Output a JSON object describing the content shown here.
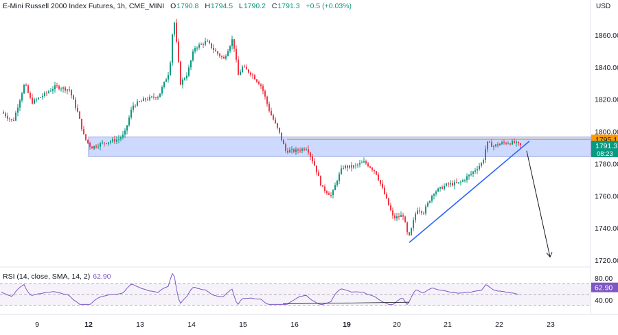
{
  "header": {
    "symbol": "E-Mini Russell 2000 Index Futures, 1h, CME_MINI",
    "open_label": "O",
    "open": "1790.8",
    "high_label": "H",
    "high": "1794.5",
    "low_label": "L",
    "low": "1790.2",
    "close_label": "C",
    "close": "1791.3",
    "change": "+0.5 (+0.03%)"
  },
  "currency": "USD",
  "price_axis": {
    "ticks": [
      "1860.00",
      "1840.00",
      "1820.00",
      "1800.00",
      "1780.00",
      "1760.00",
      "1740.00",
      "1720.00"
    ],
    "resistance_label": "1795.1",
    "last_price_label": "1791.3",
    "countdown": "08:23"
  },
  "time_axis": {
    "ticks": [
      "9",
      "12",
      "13",
      "14",
      "15",
      "16",
      "19",
      "20",
      "21",
      "22",
      "23"
    ],
    "bold": [
      "12",
      "19"
    ]
  },
  "rsi": {
    "legend": "RSI (14, close, SMA, 14, 2)",
    "value": "62.90",
    "axis_ticks": [
      "80.00",
      "40.00"
    ],
    "value_label": "62.90"
  },
  "colors": {
    "up": "#089981",
    "down": "#f23645",
    "zone": "#b2c5ff",
    "resistance": "#ff9800",
    "trend": "#2962ff",
    "rsi": "#7e57c2"
  },
  "chart_data": {
    "type": "candlestick",
    "ylim": [
      1715,
      1872
    ],
    "x": [
      "9",
      "12",
      "13",
      "14",
      "15",
      "16",
      "19",
      "20",
      "21",
      "22",
      "23"
    ],
    "key_points": [
      {
        "x": "9",
        "price": 1810
      },
      {
        "x": "9",
        "price": 1830
      },
      {
        "x": "12",
        "price": 1790
      },
      {
        "x": "13",
        "price": 1820
      },
      {
        "x": "13",
        "price": 1872
      },
      {
        "x": "14",
        "price": 1855
      },
      {
        "x": "14",
        "price": 1862
      },
      {
        "x": "15",
        "price": 1838
      },
      {
        "x": "15",
        "price": 1785
      },
      {
        "x": "16",
        "price": 1758
      },
      {
        "x": "19",
        "price": 1780
      },
      {
        "x": "20",
        "price": 1733
      },
      {
        "x": "21",
        "price": 1767
      },
      {
        "x": "22",
        "price": 1795
      },
      {
        "x": "22",
        "price": 1791.3
      }
    ],
    "support_resistance_zone": [
      1786,
      1795.1
    ],
    "resistance_line": 1795.1,
    "rsi": {
      "ylim": [
        30,
        90
      ],
      "value": 62.9,
      "levels": [
        70,
        50,
        30
      ]
    }
  }
}
